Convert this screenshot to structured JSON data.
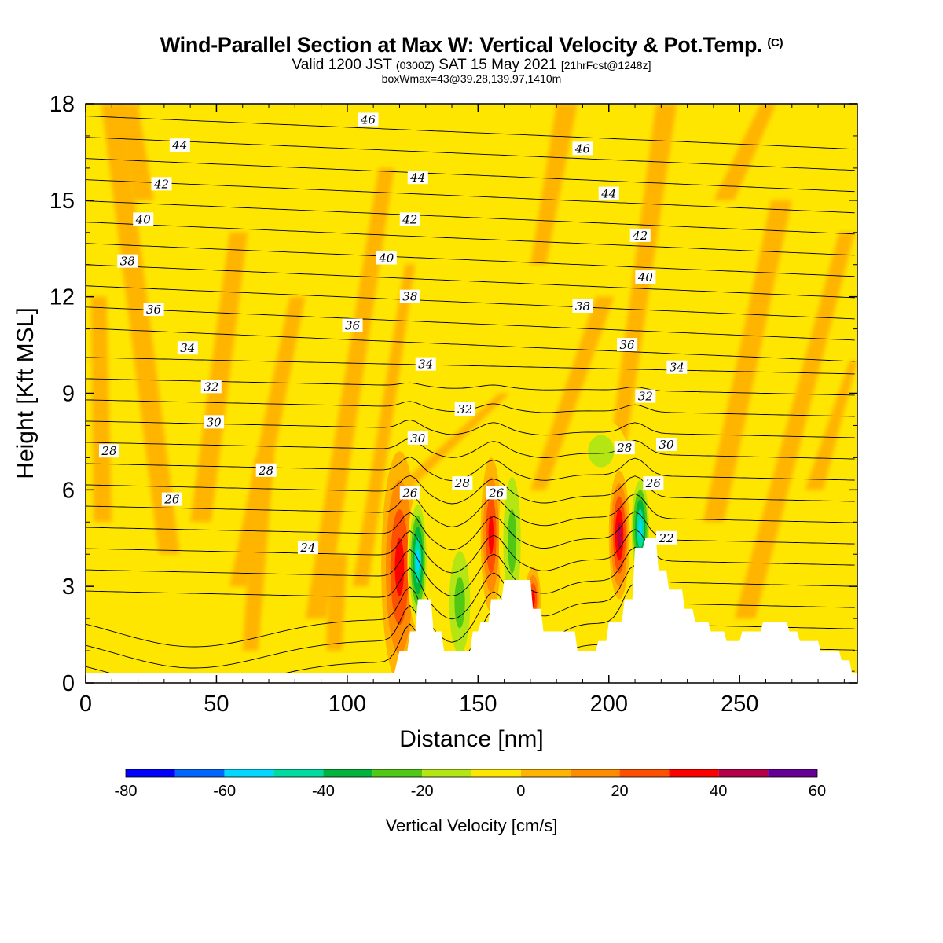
{
  "title": {
    "main": "Wind-Parallel Section at Max W: Vertical Velocity & Pot.Temp.",
    "main_suffix": "(C)",
    "sub_valid": "Valid 1200 JST",
    "sub_utc": "(0300Z)",
    "sub_date": "SAT 15 May 2021",
    "sub_fcst": "[21hrFcst@1248z]",
    "sub2": "boxWmax=43@39.28,139.97,1410m"
  },
  "chart_data": {
    "type": "heatmap",
    "title": "Wind-Parallel Section at Max W: Vertical Velocity & Pot.Temp.",
    "xlabel": "Distance [nm]",
    "ylabel": "Height [Kft MSL]",
    "xlim": [
      0,
      295
    ],
    "ylim": [
      0,
      18
    ],
    "x_ticks": [
      0,
      50,
      100,
      150,
      200,
      250
    ],
    "y_ticks": [
      0,
      3,
      6,
      9,
      12,
      15,
      18
    ],
    "colorbar": {
      "title": "Vertical Velocity [cm/s]",
      "ticks": [
        -80,
        -60,
        -40,
        -20,
        0,
        20,
        40,
        60
      ],
      "bins": [
        {
          "from": -80,
          "to": -70,
          "color": "#0000ff"
        },
        {
          "from": -70,
          "to": -60,
          "color": "#0066ff"
        },
        {
          "from": -60,
          "to": -50,
          "color": "#00d8ff"
        },
        {
          "from": -50,
          "to": -40,
          "color": "#00dca0"
        },
        {
          "from": -40,
          "to": -30,
          "color": "#00b43c"
        },
        {
          "from": -30,
          "to": -20,
          "color": "#50c814"
        },
        {
          "from": -20,
          "to": -10,
          "color": "#b4e614"
        },
        {
          "from": -10,
          "to": 0,
          "color": "#ffe600"
        },
        {
          "from": 0,
          "to": 10,
          "color": "#ffb400"
        },
        {
          "from": 10,
          "to": 20,
          "color": "#ff8c00"
        },
        {
          "from": 20,
          "to": 30,
          "color": "#ff5000"
        },
        {
          "from": 30,
          "to": 40,
          "color": "#ff0000"
        },
        {
          "from": 40,
          "to": 50,
          "color": "#b40046"
        },
        {
          "from": 50,
          "to": 60,
          "color": "#640096"
        }
      ]
    },
    "terrain": [
      [
        0,
        0.3
      ],
      [
        118,
        0.3
      ],
      [
        120,
        1.0
      ],
      [
        123,
        1.0
      ],
      [
        124,
        1.6
      ],
      [
        126,
        1.6
      ],
      [
        127,
        2.6
      ],
      [
        132,
        2.6
      ],
      [
        133,
        1.6
      ],
      [
        136,
        1.6
      ],
      [
        137,
        1.0
      ],
      [
        147,
        1.0
      ],
      [
        148,
        1.6
      ],
      [
        150,
        1.6
      ],
      [
        151,
        1.9
      ],
      [
        154,
        1.9
      ],
      [
        155,
        2.6
      ],
      [
        159,
        2.6
      ],
      [
        160,
        3.2
      ],
      [
        170,
        3.2
      ],
      [
        171,
        2.3
      ],
      [
        174,
        2.3
      ],
      [
        175,
        1.6
      ],
      [
        187,
        1.6
      ],
      [
        188,
        1.0
      ],
      [
        195,
        1.0
      ],
      [
        196,
        1.3
      ],
      [
        199,
        1.3
      ],
      [
        200,
        1.9
      ],
      [
        205,
        1.9
      ],
      [
        206,
        2.6
      ],
      [
        209,
        2.6
      ],
      [
        210,
        4.2
      ],
      [
        213,
        4.2
      ],
      [
        214,
        4.5
      ],
      [
        218,
        4.5
      ],
      [
        219,
        3.5
      ],
      [
        222,
        3.5
      ],
      [
        223,
        2.9
      ],
      [
        228,
        2.9
      ],
      [
        229,
        2.3
      ],
      [
        232,
        2.3
      ],
      [
        233,
        1.9
      ],
      [
        238,
        1.9
      ],
      [
        239,
        1.6
      ],
      [
        244,
        1.6
      ],
      [
        245,
        1.3
      ],
      [
        250,
        1.3
      ],
      [
        251,
        1.6
      ],
      [
        258,
        1.6
      ],
      [
        259,
        1.9
      ],
      [
        268,
        1.9
      ],
      [
        269,
        1.6
      ],
      [
        272,
        1.6
      ],
      [
        273,
        1.3
      ],
      [
        280,
        1.3
      ],
      [
        281,
        1.0
      ],
      [
        288,
        1.0
      ],
      [
        289,
        0.7
      ],
      [
        292,
        0.7
      ],
      [
        293,
        0.3
      ],
      [
        295,
        0.3
      ]
    ],
    "w_features": [
      {
        "x": 120,
        "y": 3.4,
        "rx": 4,
        "ry": 2.3,
        "value": 55
      },
      {
        "x": 120,
        "y": 3.6,
        "rx": 7,
        "ry": 3.6,
        "value": 35
      },
      {
        "x": 127,
        "y": 3.8,
        "rx": 4,
        "ry": 2.1,
        "value": -55
      },
      {
        "x": 143,
        "y": 2.5,
        "rx": 6,
        "ry": 2.4,
        "value": -25
      },
      {
        "x": 155,
        "y": 4.6,
        "rx": 4,
        "ry": 2.4,
        "value": 35
      },
      {
        "x": 163,
        "y": 4.4,
        "rx": 5,
        "ry": 3.0,
        "value": -25
      },
      {
        "x": 171,
        "y": 2.6,
        "rx": 3,
        "ry": 1.0,
        "value": 35
      },
      {
        "x": 197,
        "y": 7.2,
        "rx": 10,
        "ry": 1.0,
        "value": -15
      },
      {
        "x": 204,
        "y": 4.6,
        "rx": 4,
        "ry": 2.0,
        "value": 45
      },
      {
        "x": 212,
        "y": 4.8,
        "rx": 4,
        "ry": 1.8,
        "value": -55
      }
    ],
    "theta_levels": [
      22,
      23,
      24,
      25,
      26,
      27,
      28,
      29,
      30,
      31,
      32,
      33,
      34,
      35,
      36,
      37,
      38,
      39,
      40,
      41,
      42,
      43,
      44,
      45,
      46,
      47
    ],
    "contour_labels": [
      {
        "text": "46",
        "x": 108,
        "y": 17.5
      },
      {
        "text": "44",
        "x": 36,
        "y": 16.7
      },
      {
        "text": "46",
        "x": 190,
        "y": 16.6
      },
      {
        "text": "42",
        "x": 29,
        "y": 15.5
      },
      {
        "text": "44",
        "x": 127,
        "y": 15.7
      },
      {
        "text": "44",
        "x": 200,
        "y": 15.2
      },
      {
        "text": "40",
        "x": 22,
        "y": 14.4
      },
      {
        "text": "42",
        "x": 124,
        "y": 14.4
      },
      {
        "text": "42",
        "x": 212,
        "y": 13.9
      },
      {
        "text": "38",
        "x": 16,
        "y": 13.1
      },
      {
        "text": "40",
        "x": 115,
        "y": 13.2
      },
      {
        "text": "40",
        "x": 214,
        "y": 12.6
      },
      {
        "text": "38",
        "x": 124,
        "y": 12.0
      },
      {
        "text": "38",
        "x": 190,
        "y": 11.7
      },
      {
        "text": "36",
        "x": 26,
        "y": 11.6
      },
      {
        "text": "36",
        "x": 102,
        "y": 11.1
      },
      {
        "text": "34",
        "x": 39,
        "y": 10.4
      },
      {
        "text": "36",
        "x": 207,
        "y": 10.5
      },
      {
        "text": "34",
        "x": 130,
        "y": 9.9
      },
      {
        "text": "34",
        "x": 226,
        "y": 9.8
      },
      {
        "text": "32",
        "x": 48,
        "y": 9.2
      },
      {
        "text": "32",
        "x": 214,
        "y": 8.9
      },
      {
        "text": "32",
        "x": 145,
        "y": 8.5
      },
      {
        "text": "30",
        "x": 49,
        "y": 8.1
      },
      {
        "text": "30",
        "x": 127,
        "y": 7.6
      },
      {
        "text": "30",
        "x": 222,
        "y": 7.4
      },
      {
        "text": "28",
        "x": 206,
        "y": 7.3
      },
      {
        "text": "28",
        "x": 9,
        "y": 7.2
      },
      {
        "text": "28",
        "x": 69,
        "y": 6.6
      },
      {
        "text": "28",
        "x": 144,
        "y": 6.2
      },
      {
        "text": "26",
        "x": 124,
        "y": 5.9
      },
      {
        "text": "26",
        "x": 157,
        "y": 5.9
      },
      {
        "text": "26",
        "x": 217,
        "y": 6.2
      },
      {
        "text": "26",
        "x": 33,
        "y": 5.7
      },
      {
        "text": "24",
        "x": 85,
        "y": 4.2
      },
      {
        "text": "22",
        "x": 222,
        "y": 4.5
      }
    ]
  }
}
